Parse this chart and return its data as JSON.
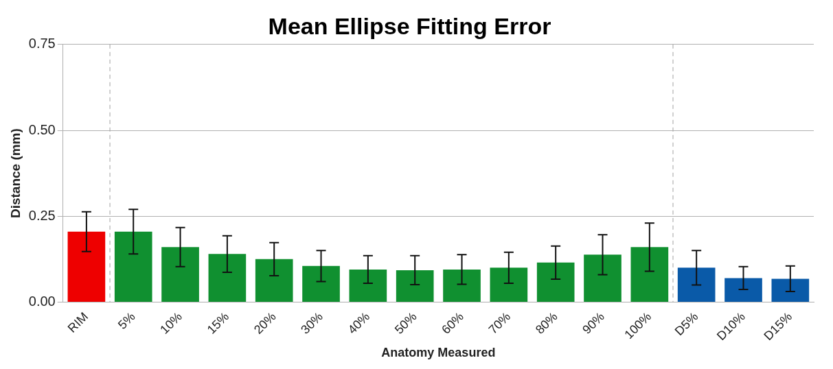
{
  "chart_data": {
    "type": "bar",
    "title": "Mean Ellipse Fitting Error",
    "xlabel": "Anatomy Measured",
    "ylabel": "Distance (mm)",
    "categories": [
      "RIM",
      "5%",
      "10%",
      "15%",
      "20%",
      "30%",
      "40%",
      "50%",
      "60%",
      "70%",
      "80%",
      "90%",
      "100%",
      "D5%",
      "D10%",
      "D15%"
    ],
    "values": [
      0.205,
      0.205,
      0.16,
      0.14,
      0.125,
      0.105,
      0.095,
      0.093,
      0.095,
      0.1,
      0.115,
      0.138,
      0.16,
      0.1,
      0.07,
      0.068
    ],
    "errors": [
      0.058,
      0.065,
      0.057,
      0.053,
      0.048,
      0.045,
      0.04,
      0.042,
      0.043,
      0.045,
      0.048,
      0.058,
      0.07,
      0.05,
      0.033,
      0.037
    ],
    "colors": [
      "#ee0000",
      "#109030",
      "#109030",
      "#109030",
      "#109030",
      "#109030",
      "#109030",
      "#109030",
      "#109030",
      "#109030",
      "#109030",
      "#109030",
      "#109030",
      "#0a5aa8",
      "#0a5aa8",
      "#0a5aa8"
    ],
    "ylim": [
      0,
      0.75
    ],
    "yticks": [
      {
        "value": 0,
        "label": "0.00"
      },
      {
        "value": 0.25,
        "label": "0.25"
      },
      {
        "value": 0.5,
        "label": "0.50"
      },
      {
        "value": 0.75,
        "label": "0.75"
      }
    ],
    "grid": "y"
  }
}
